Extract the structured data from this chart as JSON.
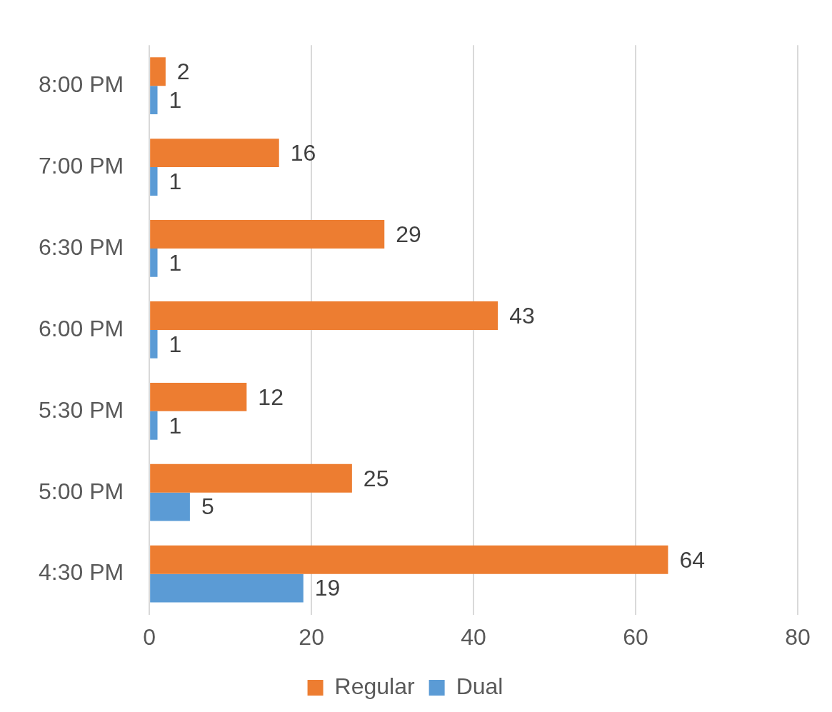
{
  "chart_data": {
    "type": "bar",
    "orientation": "horizontal",
    "categories": [
      "8:00 PM",
      "7:00 PM",
      "6:30 PM",
      "6:00 PM",
      "5:30 PM",
      "5:00 PM",
      "4:30 PM"
    ],
    "series": [
      {
        "name": "Regular",
        "color": "#ed7d31",
        "values": [
          2,
          16,
          29,
          43,
          12,
          25,
          64
        ]
      },
      {
        "name": "Dual",
        "color": "#5b9bd5",
        "values": [
          1,
          1,
          1,
          1,
          1,
          5,
          19
        ]
      }
    ],
    "xlim": [
      0,
      80
    ],
    "xticks": [
      0,
      20,
      40,
      60,
      80
    ],
    "grid": "x",
    "legend": "bottom",
    "data_labels": true
  }
}
